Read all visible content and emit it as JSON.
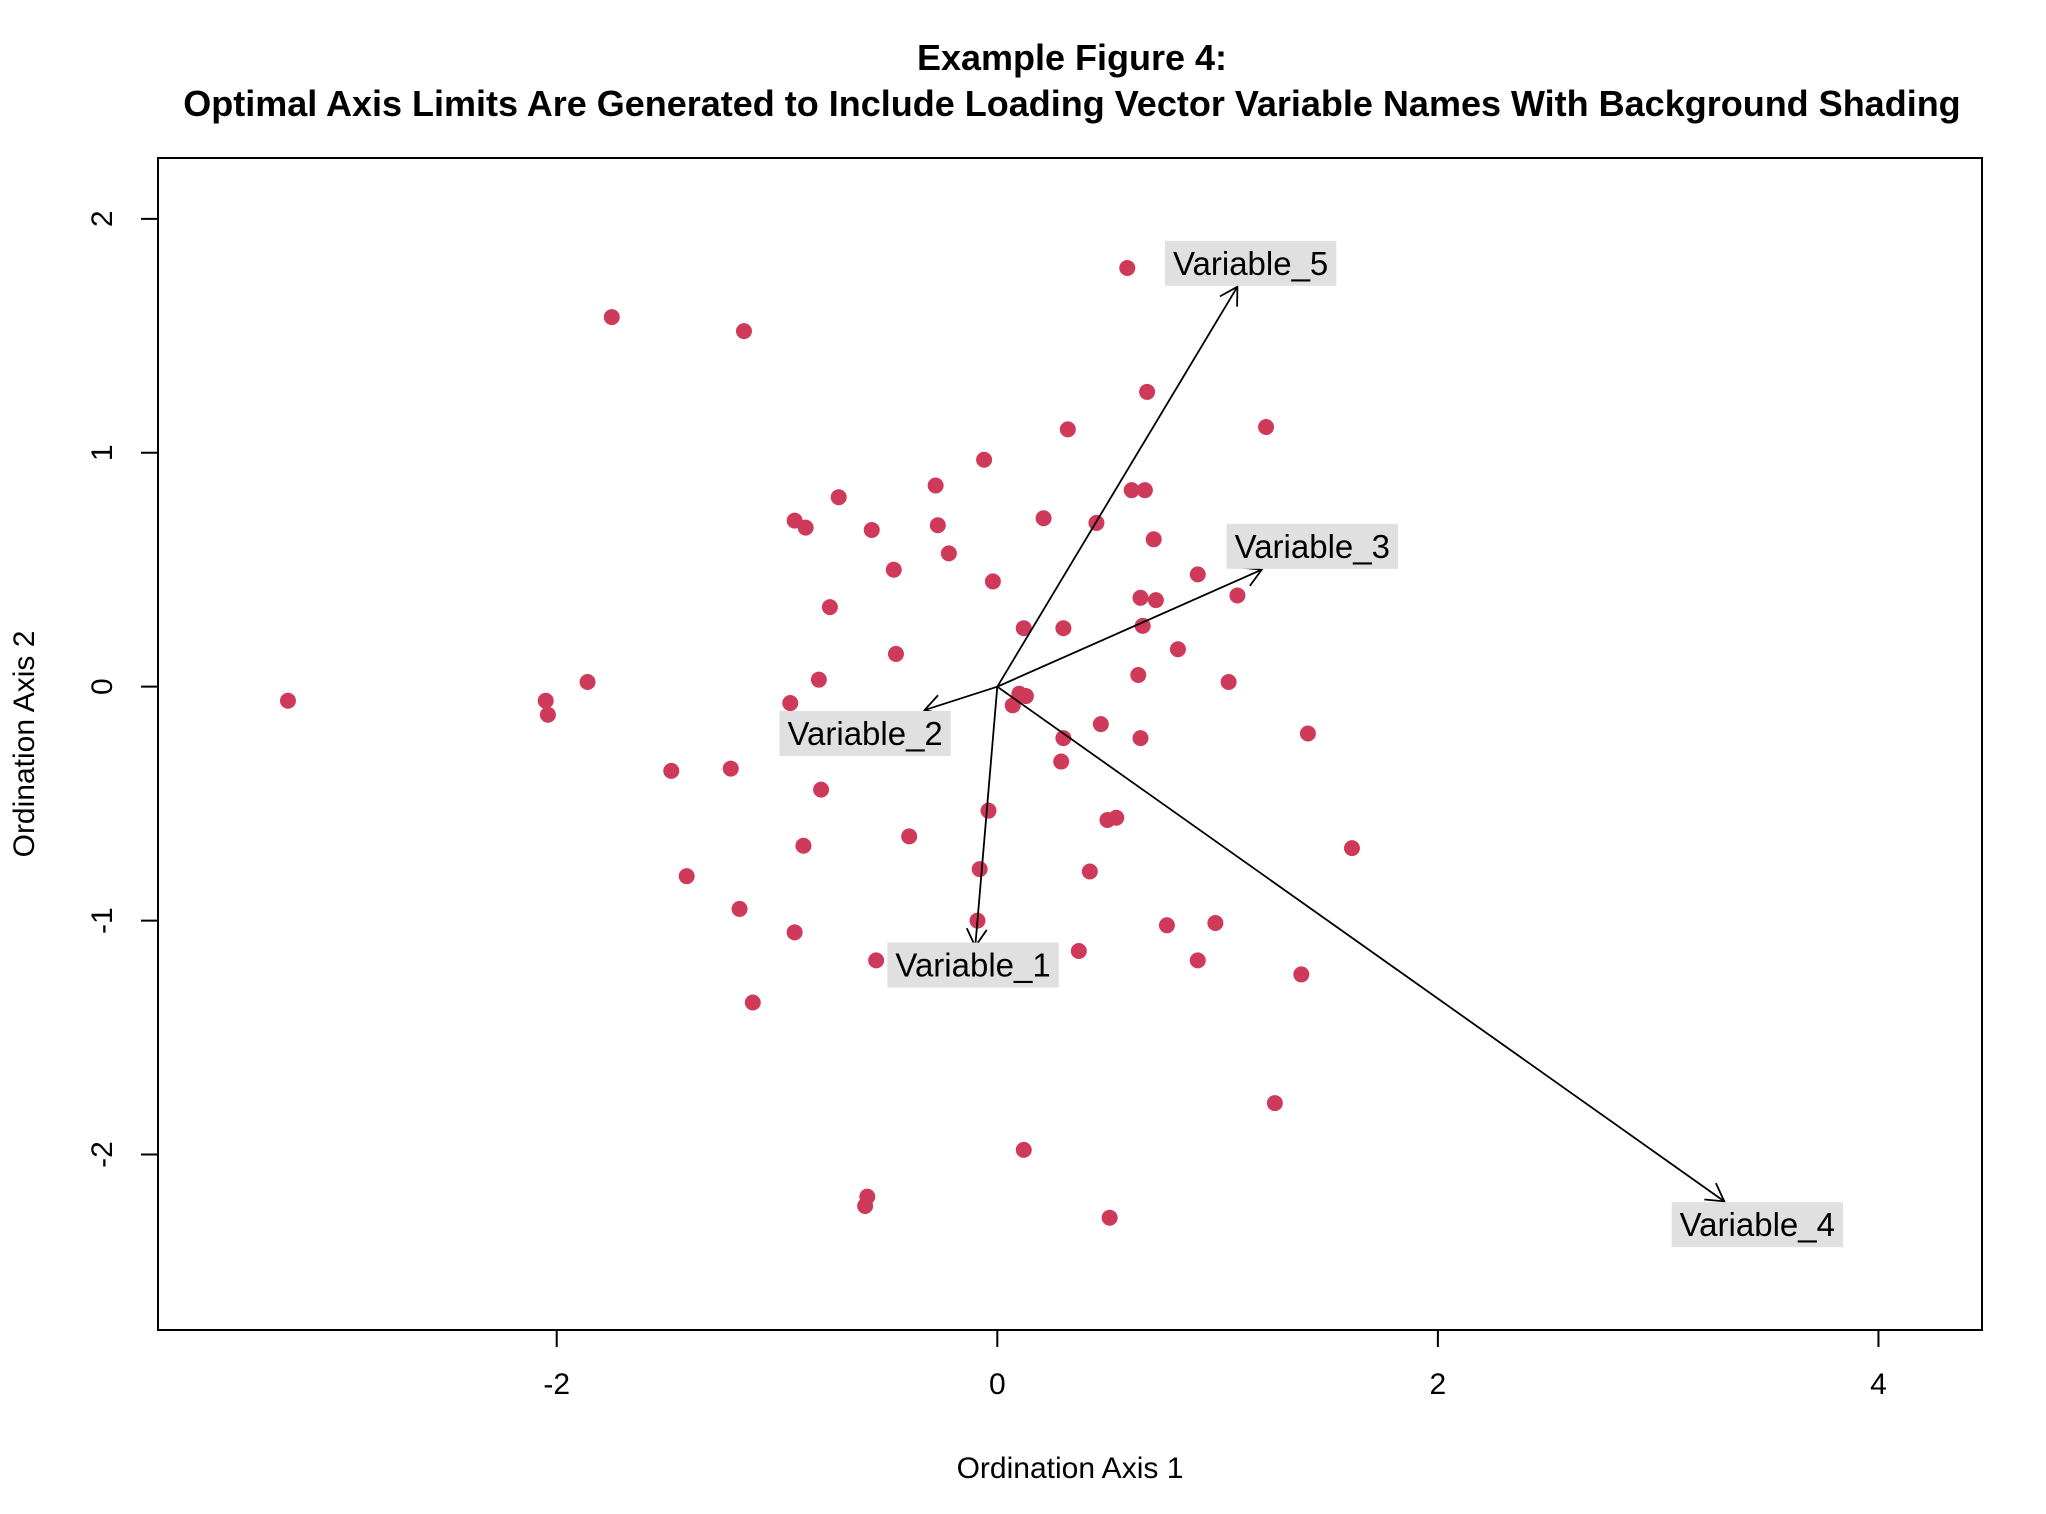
{
  "chart_data": {
    "type": "scatter",
    "title": "Example Figure 4:",
    "subtitle": "Optimal Axis Limits Are Generated to Include Loading Vector Variable Names With Background Shading",
    "xlabel": "Ordination Axis 1",
    "ylabel": "Ordination Axis 2",
    "xlim": [
      -3.81,
      4.47
    ],
    "ylim": [
      -2.75,
      2.26
    ],
    "x_ticks": [
      -2,
      0,
      2,
      4
    ],
    "y_ticks": [
      -2,
      -1,
      0,
      1,
      2
    ],
    "grid": false,
    "legend": "none",
    "point_color": "#d03a5a",
    "label_background": "#e0e0e0",
    "points": [
      {
        "x": -3.22,
        "y": -0.06
      },
      {
        "x": -2.05,
        "y": -0.06
      },
      {
        "x": -2.04,
        "y": -0.12
      },
      {
        "x": -1.86,
        "y": 0.02
      },
      {
        "x": -1.75,
        "y": 1.58
      },
      {
        "x": -1.48,
        "y": -0.36
      },
      {
        "x": -1.41,
        "y": -0.81
      },
      {
        "x": -1.21,
        "y": -0.35
      },
      {
        "x": -1.17,
        "y": -0.95
      },
      {
        "x": -1.15,
        "y": 1.52
      },
      {
        "x": -1.11,
        "y": -1.35
      },
      {
        "x": -0.94,
        "y": -0.07
      },
      {
        "x": -0.92,
        "y": 0.71
      },
      {
        "x": -0.92,
        "y": -1.05
      },
      {
        "x": -0.87,
        "y": 0.68
      },
      {
        "x": -0.88,
        "y": -0.68
      },
      {
        "x": -0.81,
        "y": 0.03
      },
      {
        "x": -0.8,
        "y": -0.44
      },
      {
        "x": -0.76,
        "y": 0.34
      },
      {
        "x": -0.72,
        "y": 0.81
      },
      {
        "x": -0.59,
        "y": -2.18
      },
      {
        "x": -0.6,
        "y": -2.22
      },
      {
        "x": -0.57,
        "y": 0.67
      },
      {
        "x": -0.55,
        "y": -1.17
      },
      {
        "x": -0.47,
        "y": 0.5
      },
      {
        "x": -0.46,
        "y": 0.14
      },
      {
        "x": -0.4,
        "y": -0.64
      },
      {
        "x": -0.28,
        "y": 0.86
      },
      {
        "x": -0.27,
        "y": 0.69
      },
      {
        "x": -0.22,
        "y": 0.57
      },
      {
        "x": -0.09,
        "y": -1.0
      },
      {
        "x": -0.08,
        "y": -0.78
      },
      {
        "x": -0.06,
        "y": 0.97
      },
      {
        "x": -0.04,
        "y": -0.53
      },
      {
        "x": -0.02,
        "y": 0.45
      },
      {
        "x": 0.07,
        "y": -0.08
      },
      {
        "x": 0.1,
        "y": -0.03
      },
      {
        "x": 0.12,
        "y": 0.25
      },
      {
        "x": 0.12,
        "y": -1.98
      },
      {
        "x": 0.13,
        "y": -0.04
      },
      {
        "x": 0.21,
        "y": 0.72
      },
      {
        "x": 0.29,
        "y": -0.32
      },
      {
        "x": 0.3,
        "y": 0.25
      },
      {
        "x": 0.3,
        "y": -0.22
      },
      {
        "x": 0.32,
        "y": 1.1
      },
      {
        "x": 0.37,
        "y": -1.13
      },
      {
        "x": 0.42,
        "y": -0.79
      },
      {
        "x": 0.45,
        "y": 0.7
      },
      {
        "x": 0.47,
        "y": -0.16
      },
      {
        "x": 0.5,
        "y": -0.57
      },
      {
        "x": 0.51,
        "y": -2.27
      },
      {
        "x": 0.54,
        "y": -0.56
      },
      {
        "x": 0.59,
        "y": 1.79
      },
      {
        "x": 0.61,
        "y": 0.84
      },
      {
        "x": 0.64,
        "y": 0.05
      },
      {
        "x": 0.65,
        "y": 0.38
      },
      {
        "x": 0.65,
        "y": -0.22
      },
      {
        "x": 0.66,
        "y": 0.26
      },
      {
        "x": 0.67,
        "y": 0.84
      },
      {
        "x": 0.68,
        "y": 1.26
      },
      {
        "x": 0.71,
        "y": 0.63
      },
      {
        "x": 0.72,
        "y": 0.37
      },
      {
        "x": 0.77,
        "y": -1.02
      },
      {
        "x": 0.82,
        "y": 0.16
      },
      {
        "x": 0.91,
        "y": 0.48
      },
      {
        "x": 0.91,
        "y": -1.17
      },
      {
        "x": 0.99,
        "y": -1.01
      },
      {
        "x": 1.05,
        "y": 0.02
      },
      {
        "x": 1.09,
        "y": 0.39
      },
      {
        "x": 1.22,
        "y": 1.11
      },
      {
        "x": 1.26,
        "y": -1.78
      },
      {
        "x": 1.38,
        "y": -1.23
      },
      {
        "x": 1.41,
        "y": -0.2
      },
      {
        "x": 1.61,
        "y": -0.69
      }
    ],
    "vectors": [
      {
        "name": "Variable_1",
        "x": -0.1,
        "y": -1.11,
        "label_x": -0.11,
        "label_y": -1.19
      },
      {
        "name": "Variable_2",
        "x": -0.33,
        "y": -0.1,
        "label_x": -0.6,
        "label_y": -0.2
      },
      {
        "name": "Variable_3",
        "x": 1.2,
        "y": 0.5,
        "label_x": 1.43,
        "label_y": 0.6
      },
      {
        "name": "Variable_4",
        "x": 3.3,
        "y": -2.2,
        "label_x": 3.45,
        "label_y": -2.3
      },
      {
        "name": "Variable_5",
        "x": 1.09,
        "y": 1.71,
        "label_x": 1.15,
        "label_y": 1.81
      }
    ]
  }
}
